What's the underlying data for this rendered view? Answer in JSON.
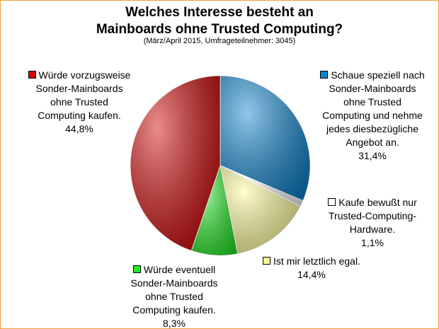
{
  "chart_data": {
    "type": "pie",
    "title": [
      "Welches Interesse besteht an",
      "Mainboards ohne Trusted Computing?"
    ],
    "subtitle": "(März/April 2015, Umfrageteilnehmer: 3045)",
    "categories": [
      "Schaue speziell nach Sonder-Mainboards ohne Trusted Computing und nehme jedes diesbezügliche Angebot an.",
      "Kaufe bewußt nur Trusted-Computing-Hardware.",
      "Ist mir letztlich egal.",
      "Würde eventuell Sonder-Mainboards ohne Trusted Computing kaufen.",
      "Würde vorzugsweise Sonder-Mainboards ohne Trusted Computing kaufen."
    ],
    "values": [
      31.4,
      1.1,
      14.4,
      8.3,
      44.8
    ],
    "value_labels": [
      "31,4%",
      "1,1%",
      "14,4%",
      "8,3%",
      "44,8%"
    ],
    "colors": [
      "#0a84d0",
      "#ffffff",
      "#ffff99",
      "#22ee22",
      "#d00000"
    ]
  }
}
